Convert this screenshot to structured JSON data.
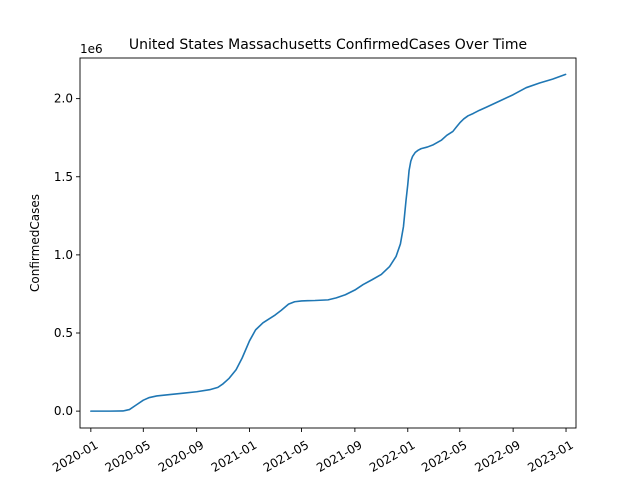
{
  "chart_data": {
    "type": "line",
    "title": "United States Massachusetts ConfirmedCases Over Time",
    "xlabel": "",
    "ylabel": "ConfirmedCases",
    "y_offset_label": "1e6",
    "grid": false,
    "line_color": "#1f77b4",
    "xlim": [
      "2019-12-07",
      "2023-01-24"
    ],
    "ylim": [
      -0.108,
      2.26
    ],
    "x_ticks": [
      {
        "value": "2020-01-01",
        "label": "2020-01"
      },
      {
        "value": "2020-05-01",
        "label": "2020-05"
      },
      {
        "value": "2020-09-01",
        "label": "2020-09"
      },
      {
        "value": "2021-01-01",
        "label": "2021-01"
      },
      {
        "value": "2021-05-01",
        "label": "2021-05"
      },
      {
        "value": "2021-09-01",
        "label": "2021-09"
      },
      {
        "value": "2022-01-01",
        "label": "2022-01"
      },
      {
        "value": "2022-05-01",
        "label": "2022-05"
      },
      {
        "value": "2022-09-01",
        "label": "2022-09"
      },
      {
        "value": "2023-01-01",
        "label": "2023-01"
      }
    ],
    "y_ticks": [
      {
        "value": 0.0,
        "label": "0.0"
      },
      {
        "value": 0.5,
        "label": "0.5"
      },
      {
        "value": 1.0,
        "label": "1.0"
      },
      {
        "value": 1.5,
        "label": "1.5"
      },
      {
        "value": 2.0,
        "label": "2.0"
      }
    ],
    "series": [
      {
        "x": [
          "2020-01-01",
          "2020-02-15",
          "2020-03-15",
          "2020-03-30",
          "2020-04-15",
          "2020-05-01",
          "2020-05-15",
          "2020-06-01",
          "2020-07-01",
          "2020-08-01",
          "2020-09-01",
          "2020-10-01",
          "2020-10-20",
          "2020-11-01",
          "2020-11-15",
          "2020-12-01",
          "2020-12-15",
          "2021-01-01",
          "2021-01-15",
          "2021-02-01",
          "2021-02-15",
          "2021-03-01",
          "2021-03-15",
          "2021-04-01",
          "2021-04-15",
          "2021-05-01",
          "2021-05-15",
          "2021-06-01",
          "2021-07-01",
          "2021-07-20",
          "2021-08-10",
          "2021-09-01",
          "2021-09-20",
          "2021-10-10",
          "2021-11-01",
          "2021-11-20",
          "2021-12-05",
          "2021-12-15",
          "2021-12-22",
          "2021-12-28",
          "2022-01-01",
          "2022-01-04",
          "2022-01-08",
          "2022-01-12",
          "2022-01-18",
          "2022-01-25",
          "2022-02-01",
          "2022-02-15",
          "2022-03-01",
          "2022-03-20",
          "2022-04-01",
          "2022-04-15",
          "2022-04-25",
          "2022-05-01",
          "2022-05-10",
          "2022-05-20",
          "2022-06-01",
          "2022-06-15",
          "2022-07-01",
          "2022-08-01",
          "2022-09-01",
          "2022-10-01",
          "2022-11-01",
          "2022-12-01",
          "2022-12-31"
        ],
        "values": [
          0.0,
          0.0,
          0.001,
          0.01,
          0.04,
          0.07,
          0.087,
          0.097,
          0.106,
          0.115,
          0.124,
          0.137,
          0.152,
          0.175,
          0.21,
          0.265,
          0.34,
          0.45,
          0.52,
          0.565,
          0.59,
          0.615,
          0.645,
          0.685,
          0.7,
          0.705,
          0.707,
          0.708,
          0.712,
          0.725,
          0.745,
          0.775,
          0.81,
          0.84,
          0.875,
          0.925,
          0.99,
          1.07,
          1.18,
          1.35,
          1.45,
          1.54,
          1.6,
          1.63,
          1.655,
          1.67,
          1.68,
          1.69,
          1.705,
          1.735,
          1.765,
          1.79,
          1.825,
          1.845,
          1.87,
          1.89,
          1.905,
          1.925,
          1.945,
          1.985,
          2.025,
          2.07,
          2.1,
          2.125,
          2.155
        ]
      }
    ]
  }
}
